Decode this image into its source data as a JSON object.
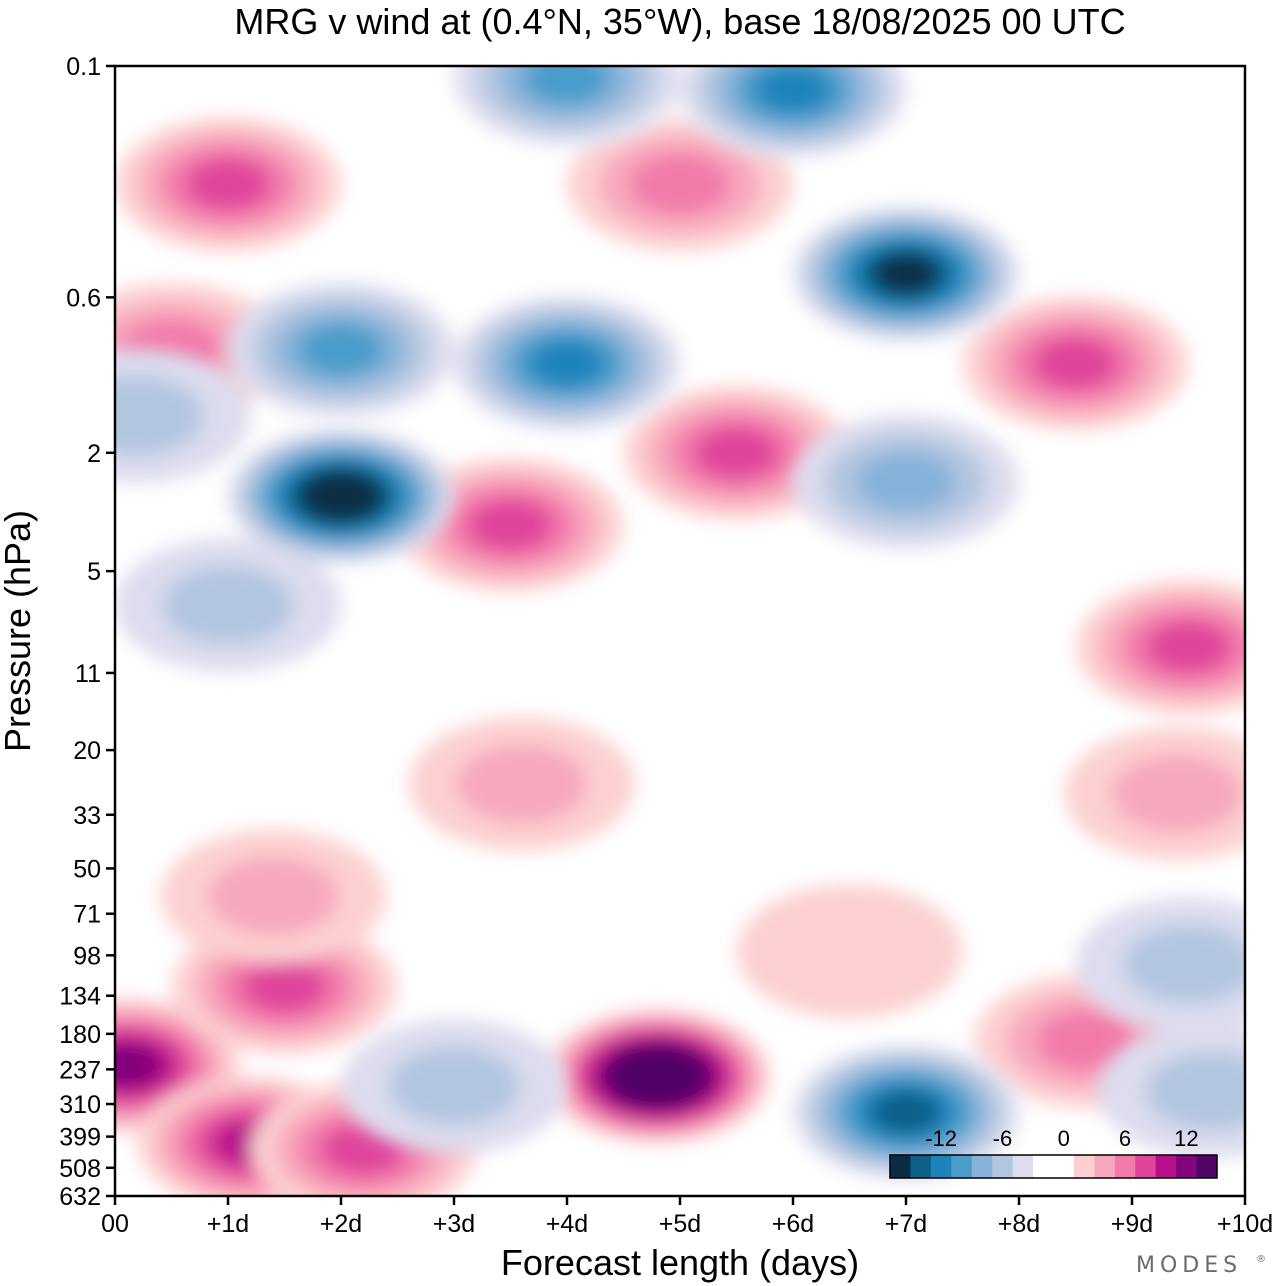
{
  "title": "MRG v wind at (0.4°N, 35°W),  base 18/08/2025  00 UTC",
  "brand": "MODES",
  "brand_mark": "®",
  "chart_data": {
    "type": "heatmap",
    "title": "MRG v wind at (0.4°N, 35°W),  base 18/08/2025  00 UTC",
    "xlabel": "Forecast length (days)",
    "ylabel": "Pressure (hPa)",
    "xlim": [
      0,
      10
    ],
    "x_ticks": [
      0,
      1,
      2,
      3,
      4,
      5,
      6,
      7,
      8,
      9,
      10
    ],
    "x_tick_labels": [
      "00",
      "+1d",
      "+2d",
      "+3d",
      "+4d",
      "+5d",
      "+6d",
      "+7d",
      "+8d",
      "+9d",
      "+10d"
    ],
    "y_scale": "log",
    "ylim": [
      632,
      0.1
    ],
    "y_ticks": [
      0.1,
      0.6,
      2,
      5,
      11,
      20,
      33,
      50,
      71,
      98,
      134,
      180,
      237,
      310,
      399,
      508,
      632
    ],
    "y_tick_labels": [
      "0.1",
      "0.6",
      "2",
      "5",
      "11",
      "20",
      "33",
      "50",
      "71",
      "98",
      "134",
      "180",
      "237",
      "310",
      "399",
      "508",
      "632"
    ],
    "colorbar": {
      "levels": [
        -16,
        -14,
        -12,
        -10,
        -8,
        -6,
        -4,
        -2,
        0,
        2,
        4,
        6,
        8,
        10,
        12,
        14,
        16
      ],
      "tick_values": [
        -12,
        -6,
        0,
        6,
        12
      ],
      "tick_labels": [
        "-12",
        "-6",
        "0",
        "6",
        "12"
      ],
      "colors": [
        "#0a2d45",
        "#0e5f8a",
        "#1b84bb",
        "#4a9ccb",
        "#86b2d9",
        "#b3c6e0",
        "#dcdcee",
        "#ffffff",
        "#ffffff",
        "#fcd0d2",
        "#f8a8bd",
        "#f27aa9",
        "#e0449c",
        "#b8108a",
        "#82067c",
        "#4f0466"
      ]
    },
    "features": [
      {
        "day": 0.1,
        "p": 230,
        "value": 11
      },
      {
        "day": 1.5,
        "p": 125,
        "value": 8
      },
      {
        "day": 1.2,
        "p": 420,
        "value": 9
      },
      {
        "day": 2.2,
        "p": 440,
        "value": 8
      },
      {
        "day": 4.8,
        "p": 250,
        "value": 17
      },
      {
        "day": 3.0,
        "p": 270,
        "value": -3
      },
      {
        "day": 7.0,
        "p": 330,
        "value": -12
      },
      {
        "day": 8.6,
        "p": 190,
        "value": 6
      },
      {
        "day": 1.4,
        "p": 62,
        "value": 3
      },
      {
        "day": 6.5,
        "p": 95,
        "value": 2
      },
      {
        "day": 9.7,
        "p": 280,
        "value": -4
      },
      {
        "day": 9.5,
        "p": 105,
        "value": -3
      },
      {
        "day": 2.0,
        "p": 2.8,
        "value": -15
      },
      {
        "day": 2.0,
        "p": 0.9,
        "value": -8
      },
      {
        "day": 4.0,
        "p": 1.0,
        "value": -9
      },
      {
        "day": 7.0,
        "p": 0.5,
        "value": -14
      },
      {
        "day": 7.0,
        "p": 2.5,
        "value": -5
      },
      {
        "day": 6.0,
        "p": 0.12,
        "value": -9
      },
      {
        "day": 4.0,
        "p": 0.11,
        "value": -8
      },
      {
        "day": 1.0,
        "p": 0.25,
        "value": 8
      },
      {
        "day": 0.5,
        "p": 0.9,
        "value": 5
      },
      {
        "day": 3.5,
        "p": 3.5,
        "value": 8
      },
      {
        "day": 5.5,
        "p": 2.0,
        "value": 7
      },
      {
        "day": 5.0,
        "p": 0.25,
        "value": 6
      },
      {
        "day": 8.5,
        "p": 1.0,
        "value": 7
      },
      {
        "day": 9.5,
        "p": 9.0,
        "value": 7
      },
      {
        "day": 1.0,
        "p": 6.5,
        "value": -4
      },
      {
        "day": 0.2,
        "p": 1.5,
        "value": -4
      },
      {
        "day": 3.6,
        "p": 26,
        "value": 3
      },
      {
        "day": 9.4,
        "p": 28,
        "value": 3
      }
    ]
  }
}
